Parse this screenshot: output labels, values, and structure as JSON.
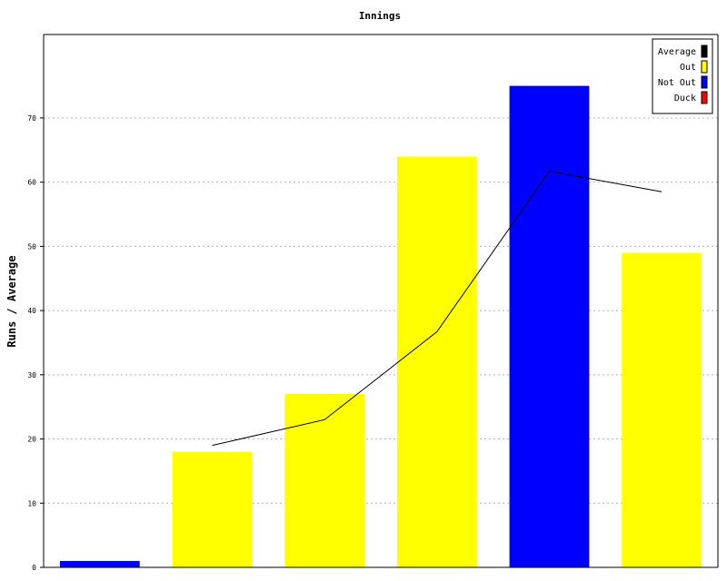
{
  "chart_data": {
    "type": "bar",
    "title": "Innings",
    "xlabel": "",
    "ylabel": "Runs / Average",
    "ylim": [
      0,
      83
    ],
    "yticks": [
      0,
      10,
      20,
      30,
      40,
      50,
      60,
      70
    ],
    "grid": true,
    "legend_position": "top-right",
    "innings": [
      {
        "runs": 1,
        "status": "Not Out"
      },
      {
        "runs": 18,
        "status": "Out"
      },
      {
        "runs": 27,
        "status": "Out"
      },
      {
        "runs": 64,
        "status": "Out"
      },
      {
        "runs": 75,
        "status": "Not Out"
      },
      {
        "runs": 49,
        "status": "Out"
      }
    ],
    "average": [
      null,
      19,
      23,
      36.7,
      61.7,
      58.5
    ],
    "legend": [
      {
        "name": "Average",
        "color": "#000000"
      },
      {
        "name": "Out",
        "color": "#ffff00"
      },
      {
        "name": "Not Out",
        "color": "#0000ff"
      },
      {
        "name": "Duck",
        "color": "#ff0000"
      }
    ]
  }
}
